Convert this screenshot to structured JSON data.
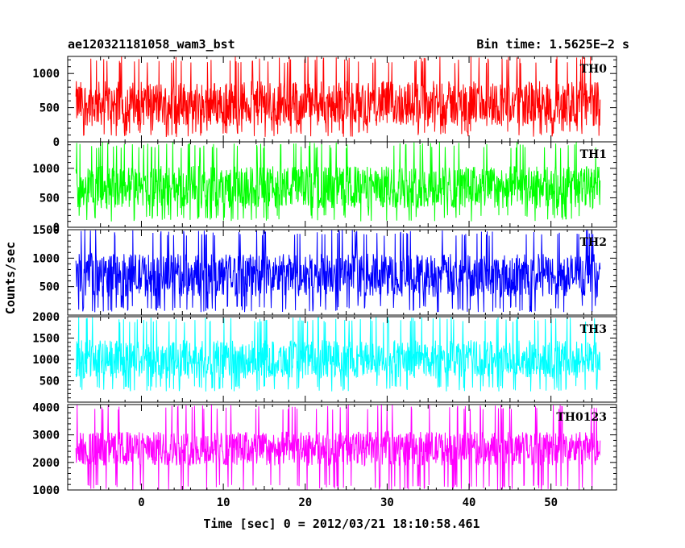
{
  "header": {
    "left_title": "ae120321181058_wam3_bst",
    "right_title": "Bin time: 1.5625E−2 s"
  },
  "chart_data": {
    "type": "line",
    "title": "ae120321181058_wam3_bst",
    "subtitle": "Bin time: 1.5625E−2 s",
    "xlabel": "Time [sec] 0 = 2012/03/21 18:10:58.461",
    "ylabel": "Counts/sec",
    "xlim": [
      -9,
      58
    ],
    "data_xrange": [
      -8,
      56
    ],
    "x_ticks": [
      0,
      10,
      20,
      30,
      40,
      50
    ],
    "grid": false,
    "panels": [
      {
        "name": "TH0",
        "color": "#ff0000",
        "ylim": [
          0,
          1250
        ],
        "y_ticks": [
          0,
          500,
          1000
        ],
        "y_tick_labels": [
          "0",
          "500",
          "1000"
        ],
        "baseline": 560,
        "spread": 330,
        "low": 70,
        "high": 1250
      },
      {
        "name": "TH1",
        "color": "#00ff00",
        "ylim": [
          0,
          1450
        ],
        "y_ticks": [
          0,
          500,
          1000
        ],
        "y_tick_labels": [
          "0",
          "500",
          "1000"
        ],
        "baseline": 680,
        "spread": 360,
        "low": 100,
        "high": 1450
      },
      {
        "name": "TH2",
        "color": "#0000ff",
        "ylim": [
          0,
          1500
        ],
        "y_ticks": [
          500,
          1000,
          1500
        ],
        "y_tick_labels": [
          "500",
          "1000",
          "1500"
        ],
        "baseline": 700,
        "spread": 380,
        "low": 50,
        "high": 1500
      },
      {
        "name": "TH3",
        "color": "#00ffff",
        "ylim": [
          0,
          2000
        ],
        "y_ticks": [
          500,
          1000,
          1500,
          2000
        ],
        "y_tick_labels": [
          "500",
          "1000",
          "1500",
          "2000"
        ],
        "baseline": 1000,
        "spread": 450,
        "low": 250,
        "high": 2000
      },
      {
        "name": "TH0123",
        "color": "#ff00ff",
        "ylim": [
          1000,
          4100
        ],
        "y_ticks": [
          1000,
          2000,
          3000,
          4000
        ],
        "y_tick_labels": [
          "1000",
          "2000",
          "3000",
          "4000"
        ],
        "baseline": 2500,
        "spread": 620,
        "low": 1000,
        "high": 4100
      }
    ]
  }
}
